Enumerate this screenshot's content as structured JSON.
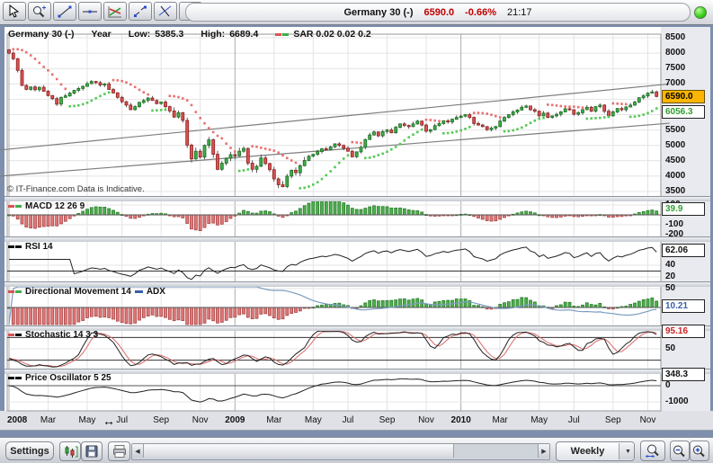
{
  "top_toolbar": {
    "tools": [
      "pointer",
      "zoom",
      "trendline",
      "horizontal-line",
      "regression",
      "segment",
      "erase-line",
      "trash"
    ],
    "title": {
      "symbol": "Germany 30 (-)",
      "price": "6590.0",
      "change": "-0.66%",
      "time": "21:17"
    }
  },
  "chart": {
    "header": {
      "symbol": "Germany 30 (-)",
      "period": "Year",
      "low_label": "Low:",
      "low": "5385.3",
      "high_label": "High:",
      "high": "6689.4",
      "sar": "SAR 0.02 0.02 0.2"
    },
    "copyright": "© IT-Finance.com Data is Indicative.",
    "price_axis": {
      "ticks": [
        8500,
        8000,
        7500,
        7000,
        5500,
        5000,
        4500,
        4000,
        3500
      ],
      "current": "6590.0",
      "sar": "6056.3"
    }
  },
  "panels": {
    "macd": {
      "label": "MACD 12 26 9",
      "value": "39.9",
      "axis": [
        100,
        -100,
        -200
      ]
    },
    "rsi": {
      "label": "RSI 14",
      "value": "62.06",
      "axis": [
        40,
        20
      ]
    },
    "dm": {
      "label": "Directional Movement 14",
      "label2": "ADX",
      "value": "10.21",
      "axis": [
        50
      ]
    },
    "stoch": {
      "label": "Stochastic 14 3 3",
      "value": "95.16",
      "axis": [
        50
      ]
    },
    "po": {
      "label": "Price Oscillator 5 25",
      "value": "348.3",
      "axis": [
        0,
        -1000
      ]
    }
  },
  "time_axis": [
    {
      "label": "2008",
      "week": 0,
      "year": true
    },
    {
      "label": "Mar",
      "week": 9
    },
    {
      "label": "May",
      "week": 18
    },
    {
      "label": "Jul",
      "week": 26
    },
    {
      "label": "Sep",
      "week": 35
    },
    {
      "label": "Nov",
      "week": 44
    },
    {
      "label": "2009",
      "week": 52,
      "year": true
    },
    {
      "label": "Mar",
      "week": 61
    },
    {
      "label": "May",
      "week": 70
    },
    {
      "label": "Jul",
      "week": 78
    },
    {
      "label": "Sep",
      "week": 87
    },
    {
      "label": "Nov",
      "week": 96
    },
    {
      "label": "2010",
      "week": 104,
      "year": true
    },
    {
      "label": "Mar",
      "week": 113
    },
    {
      "label": "May",
      "week": 122
    },
    {
      "label": "Jul",
      "week": 130
    },
    {
      "label": "Sep",
      "week": 139
    },
    {
      "label": "Nov",
      "week": 147
    }
  ],
  "bottom_toolbar": {
    "settings_label": "Settings",
    "icons": [
      "chart",
      "save",
      "print"
    ],
    "period_value": "Weekly",
    "zoom_icons": [
      "zoom-fit",
      "zoom-out",
      "zoom-in"
    ]
  },
  "colors": {
    "up": "#3fae49",
    "down": "#d65454",
    "sar_up": "#57c957",
    "sar_down": "#e87272",
    "adx_line": "#7b9cc0",
    "price_box": "#fcb500",
    "value_green": "#2f9e2f",
    "value_blue": "#3a5fa8",
    "value_red": "#cc2222",
    "title_red": "#c00000"
  },
  "chart_data": {
    "type": "candlestick",
    "symbol": "Germany 30",
    "timeframe": "Weekly",
    "x_range": [
      "2008-01",
      "2010-11"
    ],
    "y_axis": {
      "min": 3500,
      "max": 8500,
      "step": 500
    },
    "closes": [
      8000,
      7820,
      7440,
      6950,
      6820,
      6900,
      6810,
      6890,
      6760,
      6620,
      6520,
      6340,
      6560,
      6610,
      6700,
      6790,
      6850,
      6920,
      7010,
      7080,
      7040,
      6960,
      7000,
      6820,
      6710,
      6560,
      6420,
      6310,
      6160,
      6260,
      6400,
      6460,
      6540,
      6460,
      6360,
      6410,
      6260,
      6120,
      5920,
      6060,
      5810,
      5010,
      4560,
      4810,
      4620,
      5000,
      5180,
      4710,
      4220,
      4420,
      4580,
      4700,
      4660,
      4810,
      4900,
      4420,
      4220,
      4320,
      4590,
      4410,
      4210,
      3910,
      3720,
      3660,
      4000,
      4190,
      4110,
      4340,
      4510,
      4650,
      4710,
      4800,
      4890,
      4860,
      4950,
      5050,
      5000,
      4910,
      4810,
      4630,
      4790,
      4940,
      5190,
      5340,
      5440,
      5310,
      5450,
      5500,
      5410,
      5590,
      5700,
      5650,
      5610,
      5700,
      5790,
      5660,
      5460,
      5510,
      5640,
      5710,
      5800,
      5760,
      5850,
      5910,
      5950,
      6000,
      5910,
      5710,
      5660,
      5610,
      5510,
      5560,
      5610,
      5790,
      5910,
      6000,
      6090,
      6150,
      6240,
      6280,
      6160,
      6110,
      5960,
      6050,
      5910,
      5960,
      6010,
      6090,
      6190,
      6160,
      6010,
      6060,
      6160,
      6240,
      6110,
      6260,
      6310,
      6110,
      5960,
      6090,
      6200,
      6160,
      6250,
      6310,
      6410,
      6550,
      6610,
      6700,
      6740,
      6590
    ],
    "trend_channel": [
      [
        [
          -2,
          4850
        ],
        [
          152,
          7000
        ]
      ],
      [
        [
          -2,
          4000
        ],
        [
          152,
          5720
        ]
      ]
    ],
    "overlays": [
      {
        "name": "Parabolic SAR",
        "params": [
          0.02,
          0.02,
          0.2
        ],
        "last": 6056.3
      }
    ],
    "indicator_panels": [
      {
        "name": "MACD",
        "params": "12 26 9",
        "last": 39.9
      },
      {
        "name": "RSI",
        "params": "14",
        "last": 62.06
      },
      {
        "name": "Directional Movement",
        "params": "14",
        "adx_last": 10.21
      },
      {
        "name": "Stochastic",
        "params": "14 3 3",
        "last": 95.16
      },
      {
        "name": "Price Oscillator",
        "params": "5 25",
        "last": 348.3
      }
    ],
    "year_low": 5385.3,
    "year_high": 6689.4,
    "last_price": 6590.0,
    "change_pct": -0.66
  }
}
